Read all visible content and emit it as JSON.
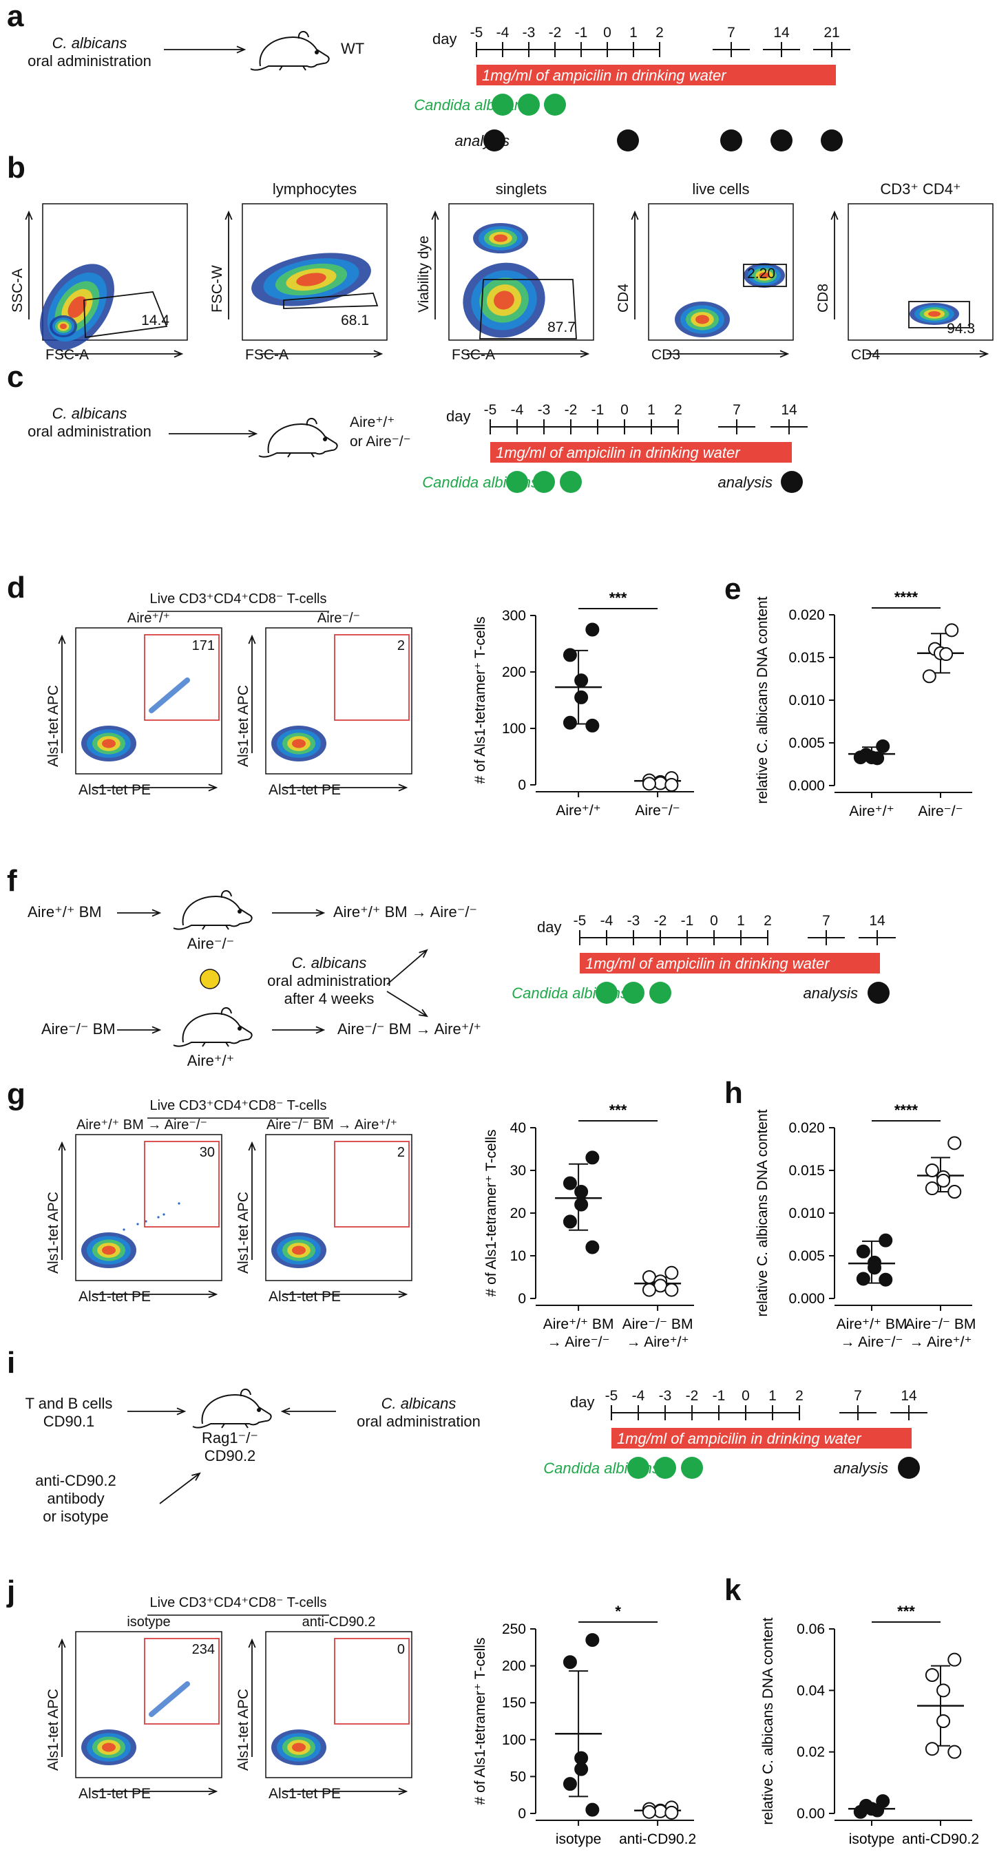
{
  "panels": {
    "a": {
      "letter": "a",
      "treatment": [
        "C. albicans",
        "oral administration"
      ],
      "mouse": "WT",
      "day_label": "day",
      "days": [
        "-5",
        "-4",
        "-3",
        "-2",
        "-1",
        "0",
        "1",
        "2",
        "7",
        "14",
        "21"
      ],
      "ampicillin": "1mg/ml of ampicilin in drinking water",
      "candida_label": "Candida albicans",
      "analysis_label": "analysis"
    },
    "b": {
      "letter": "b",
      "gates": [
        {
          "title": "",
          "xlabel": "FSC-A",
          "ylabel": "SSC-A",
          "value": "14.4"
        },
        {
          "title": "lymphocytes",
          "xlabel": "FSC-A",
          "ylabel": "FSC-W",
          "value": "68.1"
        },
        {
          "title": "singlets",
          "xlabel": "FSC-A",
          "ylabel": "Viability dye",
          "value": "87.7"
        },
        {
          "title": "live cells",
          "xlabel": "CD3",
          "ylabel": "CD4",
          "value": "2.20"
        },
        {
          "title": "CD3⁺ CD4⁺",
          "xlabel": "CD4",
          "ylabel": "CD8",
          "value": "94.3"
        }
      ]
    },
    "c": {
      "letter": "c",
      "treatment": [
        "C. albicans",
        "oral administration"
      ],
      "mouse": [
        "Aire⁺/⁺",
        "or Aire⁻/⁻"
      ],
      "day_label": "day",
      "days": [
        "-5",
        "-4",
        "-3",
        "-2",
        "-1",
        "0",
        "1",
        "2",
        "7",
        "14"
      ],
      "ampicillin": "1mg/ml of ampicilin in drinking water",
      "candida_label": "Candida albicans",
      "analysis_label": "analysis"
    },
    "d": {
      "letter": "d",
      "group_title": "Live CD3⁺CD4⁺CD8⁻ T-cells",
      "plots": [
        {
          "title": "Aire⁺/⁺",
          "count": "171"
        },
        {
          "title": "Aire⁻/⁻",
          "count": "2"
        }
      ],
      "xlabel": "Als1-tet PE",
      "ylabel": "Als1-tet APC"
    },
    "g": {
      "letter": "g",
      "group_title": "Live CD3⁺CD4⁺CD8⁻ T-cells",
      "plots": [
        {
          "title": "Aire⁺/⁺ BM → Aire⁻/⁻",
          "count": "30"
        },
        {
          "title": "Aire⁻/⁻ BM → Aire⁺/⁺",
          "count": "2"
        }
      ],
      "xlabel": "Als1-tet PE",
      "ylabel": "Als1-tet APC"
    },
    "j": {
      "letter": "j",
      "group_title": "Live CD3⁺CD4⁺CD8⁻ T-cells",
      "plots": [
        {
          "title": "isotype",
          "count": "234"
        },
        {
          "title": "anti-CD90.2",
          "count": "0"
        }
      ],
      "xlabel": "Als1-tet PE",
      "ylabel": "Als1-tet APC"
    },
    "f": {
      "letter": "f",
      "donor1": "Aire⁺/⁺ BM",
      "recipient1": "Aire⁻/⁻",
      "result1": "Aire⁺/⁺ BM → Aire⁻/⁻",
      "donor2": "Aire⁻/⁻ BM",
      "recipient2": "Aire⁺/⁺",
      "result2": "Aire⁻/⁻ BM → Aire⁺/⁺",
      "treatment": [
        "C. albicans",
        "oral administration",
        "after 4 weeks"
      ],
      "day_label": "day",
      "days": [
        "-5",
        "-4",
        "-3",
        "-2",
        "-1",
        "0",
        "1",
        "2",
        "7",
        "14"
      ],
      "ampicillin": "1mg/ml of ampicilin in drinking water",
      "candida_label": "Candida albicans",
      "analysis_label": "analysis"
    },
    "i": {
      "letter": "i",
      "donor": [
        "T and B cells",
        "CD90.1"
      ],
      "recipient": [
        "Rag1⁻/⁻",
        "CD90.2"
      ],
      "antibody": [
        "anti-CD90.2",
        "antibody",
        "or isotype"
      ],
      "treatment": [
        "C. albicans",
        "oral administration"
      ],
      "day_label": "day",
      "days": [
        "-5",
        "-4",
        "-3",
        "-2",
        "-1",
        "0",
        "1",
        "2",
        "7",
        "14"
      ],
      "ampicillin": "1mg/ml of ampicilin in drinking water",
      "candida_label": "Candida albicans",
      "analysis_label": "analysis"
    },
    "e": {
      "letter": "e"
    },
    "h": {
      "letter": "h"
    },
    "k": {
      "letter": "k"
    }
  },
  "colors": {
    "ampicillin_bar": "#e8463c",
    "candida": "#1fa84a",
    "gate_red": "#d94040",
    "dot_black": "#111111"
  },
  "chart_data": [
    {
      "id": "d",
      "type": "scatter",
      "ylabel": "# of Als1-tetramer⁺ T-cells",
      "categories": [
        "Aire⁺/⁺",
        "Aire⁻/⁻"
      ],
      "ylim": [
        0,
        300
      ],
      "yticks": [
        "0",
        "100",
        "200",
        "300"
      ],
      "significance": "***",
      "series": [
        {
          "values": [
            275,
            230,
            185,
            155,
            110,
            105
          ],
          "filled": true,
          "mean": 173,
          "sd_low": 108,
          "sd_high": 238
        },
        {
          "values": [
            12,
            8,
            5,
            3,
            2,
            0
          ],
          "filled": false,
          "mean": 7,
          "sd_low": 2,
          "sd_high": 13
        }
      ]
    },
    {
      "id": "e",
      "type": "scatter",
      "ylabel": "relative C. albicans DNA content",
      "categories": [
        "Aire⁺/⁺",
        "Aire⁻/⁻"
      ],
      "ylim": [
        0,
        0.02
      ],
      "yticks": [
        "0.000",
        "0.005",
        "0.010",
        "0.015",
        "0.020"
      ],
      "significance": "****",
      "series": [
        {
          "values": [
            0.0046,
            0.0036,
            0.0033,
            0.0032,
            0.0033
          ],
          "filled": true,
          "mean": 0.0037,
          "sd_low": 0.003,
          "sd_high": 0.0045
        },
        {
          "values": [
            0.0182,
            0.016,
            0.0155,
            0.0154,
            0.0128
          ],
          "filled": false,
          "mean": 0.0155,
          "sd_low": 0.0132,
          "sd_high": 0.0178
        }
      ]
    },
    {
      "id": "g",
      "type": "scatter",
      "ylabel": "# of Als1-tetramer⁺ T-cells",
      "categories": [
        "Aire⁺/⁺ BM|→ Aire⁻/⁻",
        "Aire⁻/⁻ BM|→ Aire⁺/⁺"
      ],
      "ylim": [
        0,
        40
      ],
      "yticks": [
        "0",
        "10",
        "20",
        "30",
        "40"
      ],
      "significance": "***",
      "series": [
        {
          "values": [
            33,
            27,
            25,
            22,
            18,
            12
          ],
          "filled": true,
          "mean": 23.5,
          "sd_low": 16,
          "sd_high": 31.5
        },
        {
          "values": [
            6,
            5,
            4,
            3,
            2,
            2
          ],
          "filled": false,
          "mean": 3.5,
          "sd_low": 2,
          "sd_high": 5
        }
      ]
    },
    {
      "id": "h",
      "type": "scatter",
      "ylabel": "relative C. albicans DNA content",
      "categories": [
        "Aire⁺/⁺ BM|→ Aire⁻/⁻",
        "Aire⁻/⁻ BM|→ Aire⁺/⁺"
      ],
      "ylim": [
        0,
        0.02
      ],
      "yticks": [
        "0.000",
        "0.005",
        "0.010",
        "0.015",
        "0.020"
      ],
      "significance": "****",
      "series": [
        {
          "values": [
            0.0068,
            0.0055,
            0.0042,
            0.0036,
            0.0023,
            0.0022
          ],
          "filled": true,
          "mean": 0.0041,
          "sd_low": 0.0018,
          "sd_high": 0.0067
        },
        {
          "values": [
            0.0182,
            0.015,
            0.0142,
            0.0138,
            0.0129,
            0.0125
          ],
          "filled": false,
          "mean": 0.0144,
          "sd_low": 0.0125,
          "sd_high": 0.0165
        }
      ]
    },
    {
      "id": "j",
      "type": "scatter",
      "ylabel": "# of Als1-tetramer⁺ T-cells",
      "categories": [
        "isotype",
        "anti-CD90.2"
      ],
      "ylim": [
        0,
        250
      ],
      "yticks": [
        "0",
        "50",
        "100",
        "150",
        "200",
        "250"
      ],
      "significance": "*",
      "series": [
        {
          "values": [
            235,
            205,
            75,
            60,
            40,
            5
          ],
          "filled": true,
          "mean": 108,
          "sd_low": 23,
          "sd_high": 193
        },
        {
          "values": [
            8,
            6,
            4,
            3,
            2,
            1
          ],
          "filled": false,
          "mean": 4,
          "sd_low": 1,
          "sd_high": 7
        }
      ]
    },
    {
      "id": "k",
      "type": "scatter",
      "ylabel": "relative C. albicans DNA content",
      "categories": [
        "isotype",
        "anti-CD90.2"
      ],
      "ylim": [
        0,
        0.06
      ],
      "yticks": [
        "0.00",
        "0.02",
        "0.04",
        "0.06"
      ],
      "significance": "***",
      "series": [
        {
          "values": [
            0.004,
            0.0025,
            0.0015,
            0.001,
            0.0005
          ],
          "filled": true,
          "mean": 0.0015,
          "sd_low": 0.0003,
          "sd_high": 0.0028
        },
        {
          "values": [
            0.05,
            0.045,
            0.04,
            0.03,
            0.021,
            0.02
          ],
          "filled": false,
          "mean": 0.035,
          "sd_low": 0.022,
          "sd_high": 0.048
        }
      ]
    }
  ]
}
